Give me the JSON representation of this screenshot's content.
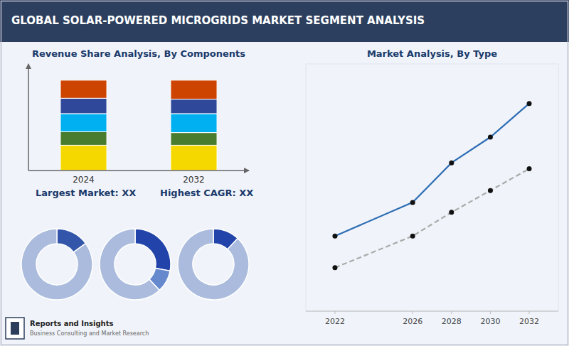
{
  "title": "GLOBAL SOLAR-POWERED MICROGRIDS MARKET SEGMENT ANALYSIS",
  "annotations": [
    "Reports and Insights",
    "Business Consulting and Market Research"
  ],
  "chart_data": [
    {
      "type": "bar",
      "title": "Revenue Share Analysis, By Components",
      "categories": [
        "2024",
        "2032"
      ],
      "series": [
        {
          "color": "#f5d800",
          "values": [
            0.28,
            0.28
          ]
        },
        {
          "color": "#4a7c2f",
          "values": [
            0.15,
            0.14
          ]
        },
        {
          "color": "#00b0f0",
          "values": [
            0.2,
            0.21
          ]
        },
        {
          "color": "#2f4899",
          "values": [
            0.17,
            0.16
          ]
        },
        {
          "color": "#cc4400",
          "values": [
            0.2,
            0.21
          ]
        }
      ],
      "stacked": true,
      "ylim": [
        0,
        1.18
      ],
      "tick_labels": "x",
      "grid": false,
      "annotations": [
        "Largest Market: XX",
        "Highest CAGR: XX"
      ]
    },
    {
      "type": "pie",
      "values": [
        0.15,
        0.85
      ],
      "colors": [
        "#3355aa",
        "#aabbdd"
      ]
    },
    {
      "type": "pie",
      "values": [
        0.28,
        0.1,
        0.62
      ],
      "colors": [
        "#2244aa",
        "#6688cc",
        "#aabbdd"
      ]
    },
    {
      "type": "pie",
      "values": [
        0.12,
        0.88
      ],
      "colors": [
        "#2244aa",
        "#aabbdd"
      ]
    },
    {
      "type": "line",
      "title": "Market Analysis, By Type",
      "x": [
        2022,
        2026,
        2028,
        2030,
        2032
      ],
      "series": [
        {
          "color": "#2e6db4",
          "line_style": "solid",
          "marker": "circle",
          "values": [
            3.8,
            5.5,
            7.5,
            8.8,
            10.5
          ]
        },
        {
          "color": "#aaaaaa",
          "line_style": "dashed",
          "marker": "circle",
          "values": [
            2.2,
            3.8,
            5.0,
            6.1,
            7.2
          ]
        }
      ],
      "xlim": [
        2020.5,
        2033.5
      ],
      "xticks": [
        2022,
        2026,
        2028,
        2030,
        2032
      ],
      "ylim": [
        0,
        12.5
      ],
      "tick_labels": "x",
      "grid": false
    }
  ]
}
